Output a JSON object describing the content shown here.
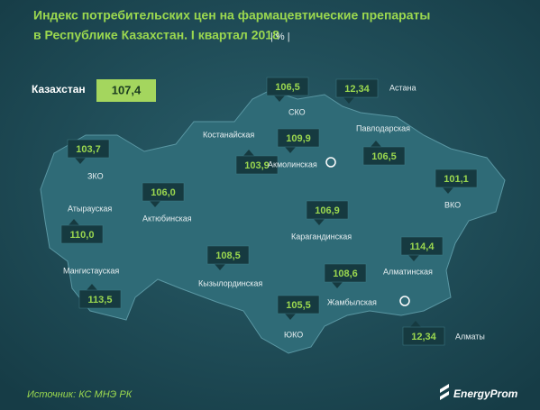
{
  "header": {
    "title_line1": "Индекс потребительских цен на фармацевтические препараты",
    "title_line2": "в Республике Казахстан. I квартал 2018",
    "unit": "| % |"
  },
  "country": {
    "name": "Казахстан",
    "value": "107,4"
  },
  "regions": [
    {
      "name": "ЗКО",
      "value": "103,7"
    },
    {
      "name": "Атырауская",
      "value": "110,0"
    },
    {
      "name": "Мангистауская",
      "value": "113,5"
    },
    {
      "name": "Актюбинская",
      "value": "106,0"
    },
    {
      "name": "Костанайская",
      "value": "103,9"
    },
    {
      "name": "СКО",
      "value": "106,5"
    },
    {
      "name": "Акмолинская",
      "value": "109,9"
    },
    {
      "name": "Павлодарская",
      "value": "106,5"
    },
    {
      "name": "ВКО",
      "value": "101,1"
    },
    {
      "name": "Карагандинская",
      "value": "106,9"
    },
    {
      "name": "Кызылординская",
      "value": "108,5"
    },
    {
      "name": "Жамбылская",
      "value": "108,6"
    },
    {
      "name": "Алматинская",
      "value": "114,4"
    },
    {
      "name": "ЮКО",
      "value": "105,5"
    },
    {
      "name": "Астана",
      "value": "12,34"
    },
    {
      "name": "Алматы",
      "value": "12,34"
    }
  ],
  "footer": {
    "source": "Источник: КС МНЭ РК",
    "logo": "EnergyProm"
  }
}
